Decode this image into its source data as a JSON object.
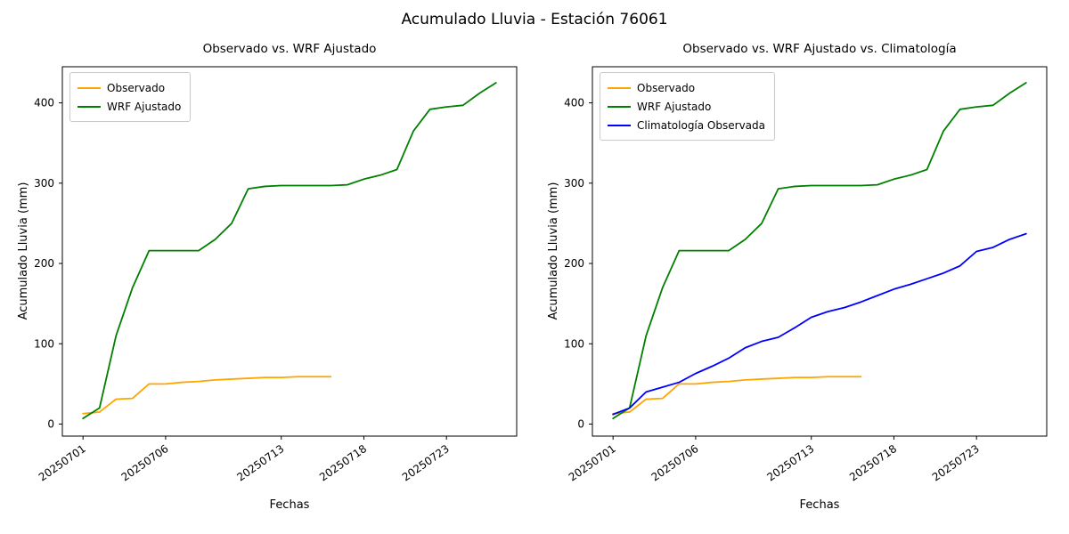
{
  "figure": {
    "title": "Acumulado Lluvia - Estación 76061",
    "background": "#ffffff"
  },
  "chart_data": [
    {
      "type": "line",
      "title": "Observado vs. WRF Ajustado",
      "xlabel": "Fechas",
      "ylabel": "Acumulado Lluvia (mm)",
      "legend_position": "upper left",
      "grid": false,
      "x": [
        "20250701",
        "20250702",
        "20250703",
        "20250704",
        "20250705",
        "20250706",
        "20250707",
        "20250708",
        "20250709",
        "20250710",
        "20250711",
        "20250712",
        "20250713",
        "20250714",
        "20250715",
        "20250716",
        "20250717",
        "20250718",
        "20250719",
        "20250720",
        "20250721",
        "20250722",
        "20250723",
        "20250724",
        "20250725",
        "20250726"
      ],
      "xtick_labels": [
        "20250701",
        "20250706",
        "20250713",
        "20250718",
        "20250723"
      ],
      "xtick_days": [
        1,
        6,
        13,
        18,
        23
      ],
      "yticks": [
        0,
        100,
        200,
        300,
        400
      ],
      "ylim": [
        -15,
        445
      ],
      "xlim": [
        -0.25,
        27.25
      ],
      "series": [
        {
          "name": "Observado",
          "color": "#ffa500",
          "values": [
            13,
            15,
            31,
            32,
            50,
            50,
            52,
            53,
            55,
            56,
            57,
            58,
            58,
            59,
            59,
            59
          ]
        },
        {
          "name": "WRF Ajustado",
          "color": "#008000",
          "values": [
            7,
            20,
            110,
            170,
            216,
            216,
            216,
            216,
            230,
            250,
            293,
            296,
            297,
            297,
            297,
            297,
            298,
            305,
            310,
            317,
            365,
            392,
            395,
            397,
            412,
            425
          ]
        }
      ]
    },
    {
      "type": "line",
      "title": "Observado vs. WRF Ajustado vs. Climatología",
      "xlabel": "Fechas",
      "ylabel": "Acumulado Lluvia (mm)",
      "legend_position": "upper left",
      "grid": false,
      "x": [
        "20250701",
        "20250702",
        "20250703",
        "20250704",
        "20250705",
        "20250706",
        "20250707",
        "20250708",
        "20250709",
        "20250710",
        "20250711",
        "20250712",
        "20250713",
        "20250714",
        "20250715",
        "20250716",
        "20250717",
        "20250718",
        "20250719",
        "20250720",
        "20250721",
        "20250722",
        "20250723",
        "20250724",
        "20250725",
        "20250726"
      ],
      "xtick_labels": [
        "20250701",
        "20250706",
        "20250713",
        "20250718",
        "20250723"
      ],
      "xtick_days": [
        1,
        6,
        13,
        18,
        23
      ],
      "yticks": [
        0,
        100,
        200,
        300,
        400
      ],
      "ylim": [
        -15,
        445
      ],
      "xlim": [
        -0.25,
        27.25
      ],
      "series": [
        {
          "name": "Observado",
          "color": "#ffa500",
          "values": [
            13,
            15,
            31,
            32,
            50,
            50,
            52,
            53,
            55,
            56,
            57,
            58,
            58,
            59,
            59,
            59
          ]
        },
        {
          "name": "WRF Ajustado",
          "color": "#008000",
          "values": [
            7,
            20,
            110,
            170,
            216,
            216,
            216,
            216,
            230,
            250,
            293,
            296,
            297,
            297,
            297,
            297,
            298,
            305,
            310,
            317,
            365,
            392,
            395,
            397,
            412,
            425
          ]
        },
        {
          "name": "Climatología Observada",
          "color": "#0000ff",
          "values": [
            12,
            20,
            40,
            46,
            52,
            63,
            72,
            82,
            95,
            103,
            108,
            120,
            133,
            140,
            145,
            152,
            160,
            168,
            174,
            181,
            188,
            197,
            215,
            220,
            230,
            237
          ]
        }
      ]
    }
  ]
}
